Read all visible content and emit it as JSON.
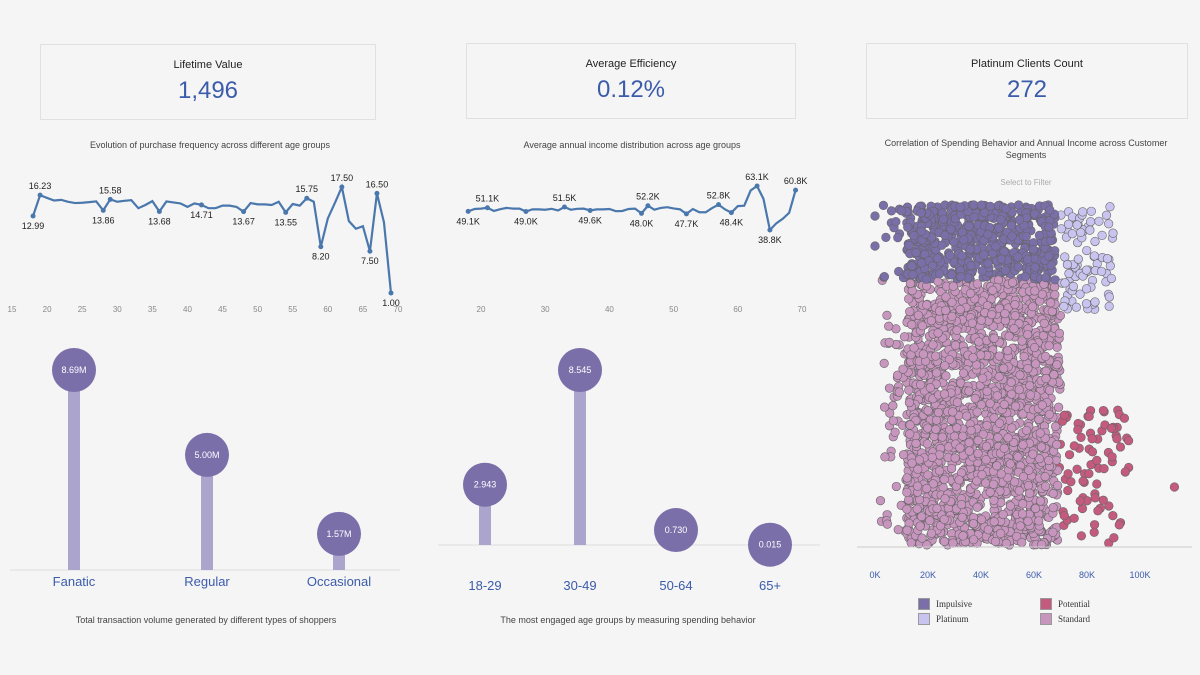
{
  "kpis": [
    {
      "title": "Lifetime Value",
      "value": "1,496"
    },
    {
      "title": "Average Efficiency",
      "value": "0.12%"
    },
    {
      "title": "Platinum Clients Count",
      "value": "272"
    }
  ],
  "captions": {
    "line1": "Evolution of purchase frequency across different age groups",
    "line2": "Average annual income distribution across age groups",
    "scatter": "Correlation of Spending Behavior and Annual Income across Customer Segments",
    "filter": "Select to Filter",
    "lolli1": "Total transaction volume generated by different types of shoppers",
    "lolli2": "The most engaged age groups by measuring spending behavior"
  },
  "chart_data": [
    {
      "type": "line",
      "xticks": [
        15,
        20,
        25,
        30,
        35,
        40,
        45,
        50,
        55,
        60,
        65,
        70
      ],
      "ylim": [
        1,
        17.5
      ],
      "color": "#4a78ad",
      "x": [
        18,
        19,
        20,
        21,
        22,
        23,
        24,
        25,
        26,
        27,
        28,
        29,
        30,
        31,
        32,
        33,
        34,
        35,
        36,
        37,
        38,
        39,
        40,
        41,
        42,
        43,
        44,
        45,
        46,
        47,
        48,
        49,
        50,
        51,
        52,
        53,
        54,
        55,
        56,
        57,
        58,
        59,
        60,
        61,
        62,
        63,
        64,
        65,
        66,
        67,
        68,
        69
      ],
      "y": [
        12.99,
        16.23,
        15.8,
        15.4,
        15.5,
        15.2,
        15.0,
        15.05,
        15.15,
        15.25,
        13.86,
        15.58,
        15.2,
        15.35,
        15.45,
        14.2,
        14.7,
        15.3,
        13.68,
        15.25,
        15.1,
        14.95,
        14.4,
        14.95,
        14.71,
        14.2,
        14.2,
        14.6,
        14.6,
        14.4,
        13.67,
        15.0,
        14.8,
        14.8,
        14.7,
        15.2,
        13.55,
        14.85,
        14.6,
        15.75,
        15.2,
        8.2,
        12.6,
        15.0,
        17.5,
        12.2,
        11.0,
        11.4,
        7.5,
        16.5,
        12.0,
        1.0
      ],
      "labels": {
        "18": "12.99",
        "19": "16.23",
        "28": "13.86",
        "29": "15.58",
        "36": "13.68",
        "42": "14.71",
        "48": "13.67",
        "54": "13.55",
        "57": "15.75",
        "59": "8.20",
        "62": "17.50",
        "66": "7.50",
        "67": "16.50",
        "69": "1.00"
      }
    },
    {
      "type": "line",
      "xticks": [
        20,
        30,
        40,
        50,
        60,
        70
      ],
      "ylim": [
        38.8,
        63.1
      ],
      "color": "#4a78ad",
      "x": [
        18,
        19,
        20,
        21,
        22,
        23,
        24,
        25,
        26,
        27,
        28,
        29,
        30,
        31,
        32,
        33,
        34,
        35,
        36,
        37,
        38,
        39,
        40,
        41,
        42,
        43,
        44,
        45,
        46,
        47,
        48,
        49,
        50,
        51,
        52,
        53,
        54,
        55,
        56,
        57,
        58,
        59,
        60,
        61,
        62,
        63,
        64,
        65,
        66,
        67,
        68,
        69
      ],
      "y": [
        49.1,
        50.4,
        50.6,
        51.1,
        49.3,
        50.3,
        51.0,
        50.6,
        50.6,
        49.0,
        50.2,
        50.2,
        50.0,
        50.5,
        49.6,
        51.5,
        50.0,
        50.5,
        50.6,
        49.6,
        50.2,
        50.2,
        50.4,
        49.2,
        49.3,
        50.4,
        50.6,
        48.0,
        52.2,
        50.0,
        51.0,
        51.4,
        50.7,
        50.2,
        47.7,
        50.4,
        48.6,
        48.6,
        50.9,
        52.8,
        50.2,
        48.4,
        52.0,
        52.2,
        60.6,
        63.1,
        56.0,
        38.8,
        42.5,
        45.0,
        48.3,
        60.8
      ],
      "labels": {
        "18": "49.1K",
        "21": "51.1K",
        "27": "49.0K",
        "33": "51.5K",
        "37": "49.6K",
        "45": "48.0K",
        "46": "52.2K",
        "52": "47.7K",
        "57": "52.8K",
        "59": "48.4K",
        "63": "63.1K",
        "65": "38.8K",
        "69": "60.8K"
      }
    },
    {
      "type": "bar",
      "style": "lollipop",
      "categories": [
        "Fanatic",
        "Regular",
        "Occasional"
      ],
      "values": [
        8.69,
        5.0,
        1.57
      ],
      "labels": [
        "8.69M",
        "5.00M",
        "1.57M"
      ],
      "color": "#7b6faa",
      "stem": "#aba4cc"
    },
    {
      "type": "bar",
      "style": "lollipop",
      "categories": [
        "18-29",
        "30-49",
        "50-64",
        "65+"
      ],
      "values": [
        2.943,
        8.545,
        0.73,
        0.015
      ],
      "labels": [
        "2.943",
        "8.545",
        "0.730",
        "0.015"
      ],
      "color": "#7b6faa",
      "stem": "#aba4cc"
    },
    {
      "type": "scatter",
      "xlabel": "",
      "xticks": [
        "0K",
        "20K",
        "40K",
        "60K",
        "80K",
        "100K"
      ],
      "xlim": [
        0,
        120000
      ],
      "legend": [
        {
          "name": "Impulsive",
          "color": "#7b6faa"
        },
        {
          "name": "Potential",
          "color": "#c45a7e"
        },
        {
          "name": "Platinum",
          "color": "#c9c3ef"
        },
        {
          "name": "Standard",
          "color": "#c895bf"
        }
      ],
      "legend_position": "bottom"
    }
  ]
}
